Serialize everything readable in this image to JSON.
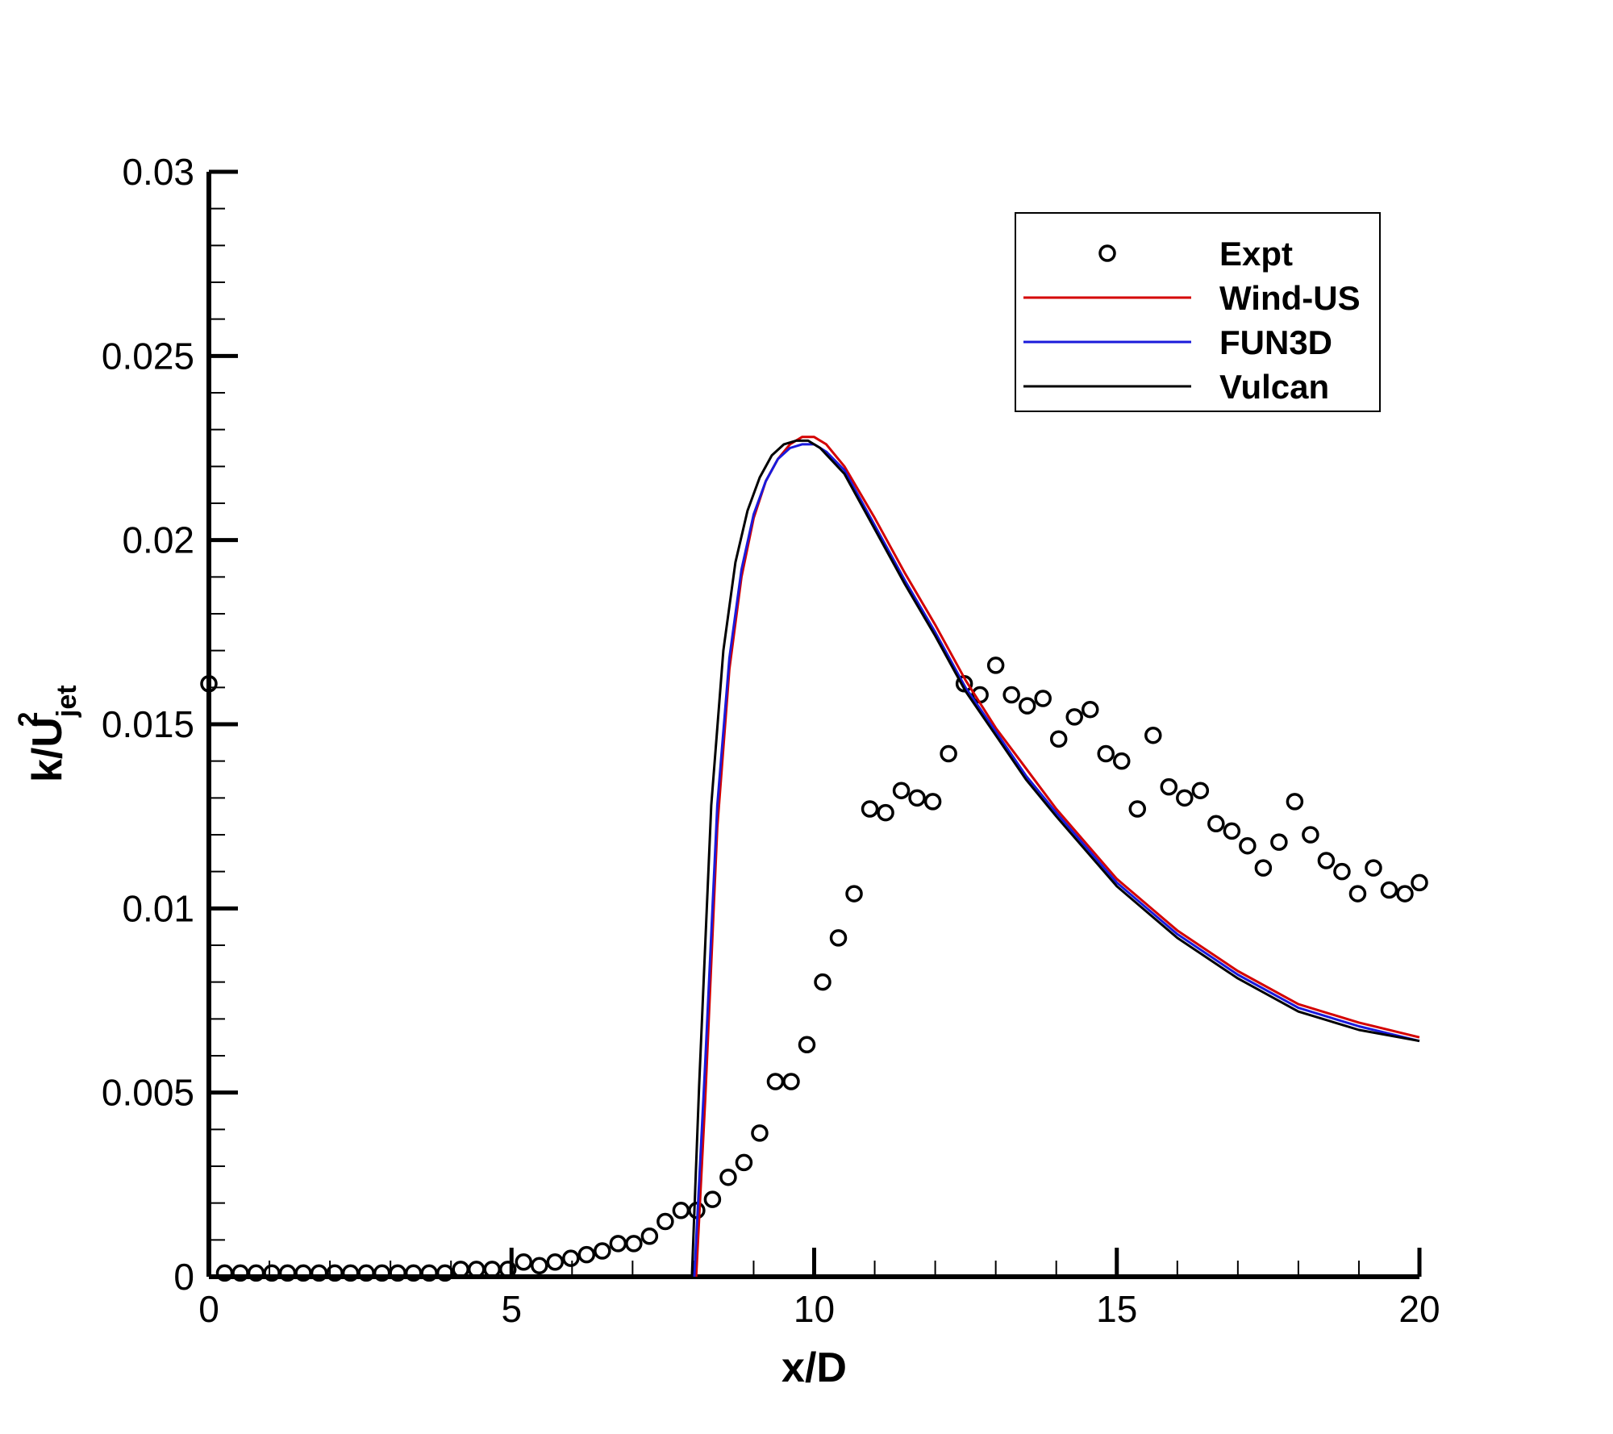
{
  "chart_data": {
    "type": "line",
    "title": "",
    "xlabel": "x/D",
    "ylabel": {
      "base": "k/U",
      "subscript": "jet",
      "superscript": "2"
    },
    "xlim": [
      0,
      20
    ],
    "ylim": [
      0,
      0.03
    ],
    "x_ticks": [
      0,
      5,
      10,
      15,
      20
    ],
    "x_tick_labels": [
      "0",
      "5",
      "10",
      "15",
      "20"
    ],
    "y_ticks": [
      0,
      0.005,
      0.01,
      0.015,
      0.02,
      0.025,
      0.03
    ],
    "y_tick_labels": [
      "0",
      "0.005",
      "0.01",
      "0.015",
      "0.02",
      "0.025",
      "0.03"
    ],
    "grid": false,
    "legend_position": "top-right",
    "legend": [
      "Expt",
      "Wind-US",
      "FUN3D",
      "Vulcan"
    ],
    "series": [
      {
        "name": "Expt",
        "style": "markers",
        "marker": "circle",
        "color": "#000000",
        "x": [
          0.0,
          0.26,
          0.52,
          0.78,
          1.04,
          1.3,
          1.56,
          1.82,
          2.08,
          2.34,
          2.6,
          2.86,
          3.12,
          3.38,
          3.64,
          3.9,
          4.16,
          4.42,
          4.68,
          4.94,
          5.2,
          5.46,
          5.72,
          5.98,
          6.24,
          6.5,
          6.76,
          7.02,
          7.28,
          7.54,
          7.8,
          8.06,
          8.32,
          8.58,
          8.84,
          9.1,
          9.36,
          9.62,
          9.88,
          10.14,
          10.4,
          10.66,
          10.92,
          11.18,
          11.44,
          11.7,
          11.96,
          12.22,
          12.48,
          12.74,
          13.0,
          13.26,
          13.52,
          13.78,
          14.04,
          14.3,
          14.56,
          14.82,
          15.08,
          15.34,
          15.6,
          15.86,
          16.12,
          16.38,
          16.64,
          16.9,
          17.16,
          17.42,
          17.68,
          17.94,
          18.2,
          18.46,
          18.72,
          18.98,
          19.24,
          19.5,
          19.76,
          20.0
        ],
        "y": [
          0.0161,
          0.0001,
          0.0001,
          0.0001,
          0.0001,
          0.0001,
          0.0001,
          0.0001,
          0.0001,
          0.0001,
          0.0001,
          0.0001,
          0.0001,
          0.0001,
          0.0001,
          0.0001,
          0.0002,
          0.0002,
          0.0002,
          0.0002,
          0.0004,
          0.0003,
          0.0004,
          0.0005,
          0.0006,
          0.0007,
          0.0009,
          0.0009,
          0.0011,
          0.0015,
          0.0018,
          0.0018,
          0.0021,
          0.0027,
          0.0031,
          0.0039,
          0.0053,
          0.0053,
          0.0063,
          0.008,
          0.0092,
          0.0104,
          0.0127,
          0.0126,
          0.0132,
          0.013,
          0.0129,
          0.0142,
          0.0161,
          0.0158,
          0.0166,
          0.0158,
          0.0155,
          0.0157,
          0.0146,
          0.0152,
          0.0154,
          0.0142,
          0.014,
          0.0127,
          0.0147,
          0.0133,
          0.013,
          0.0132,
          0.0123,
          0.0121,
          0.0117,
          0.0111,
          0.0118,
          0.0129,
          0.012,
          0.0113,
          0.011,
          0.0104,
          0.0111,
          0.0105,
          0.0104,
          0.0107
        ]
      },
      {
        "name": "Wind-US",
        "style": "line",
        "color": "#d40000",
        "x": [
          8.05,
          8.2,
          8.4,
          8.6,
          8.8,
          9.0,
          9.2,
          9.4,
          9.6,
          9.8,
          10.0,
          10.2,
          10.5,
          11.0,
          11.5,
          12.0,
          12.5,
          13.0,
          13.5,
          14.0,
          15.0,
          16.0,
          17.0,
          18.0,
          19.0,
          20.0
        ],
        "y": [
          0.0,
          0.0048,
          0.0122,
          0.0165,
          0.019,
          0.0206,
          0.0216,
          0.0222,
          0.0226,
          0.0228,
          0.0228,
          0.0226,
          0.022,
          0.0206,
          0.0191,
          0.0177,
          0.0162,
          0.0149,
          0.0138,
          0.0127,
          0.0108,
          0.0094,
          0.0083,
          0.0074,
          0.0069,
          0.0065
        ]
      },
      {
        "name": "FUN3D",
        "style": "line",
        "color": "#1a1adb",
        "x": [
          8.02,
          8.2,
          8.4,
          8.6,
          8.8,
          9.0,
          9.2,
          9.4,
          9.6,
          9.8,
          10.0,
          10.2,
          10.5,
          11.0,
          11.5,
          12.0,
          12.5,
          13.0,
          13.5,
          14.0,
          15.0,
          16.0,
          17.0,
          18.0,
          19.0,
          20.0
        ],
        "y": [
          0.0,
          0.0058,
          0.0128,
          0.0168,
          0.0192,
          0.0207,
          0.0216,
          0.0222,
          0.0225,
          0.0226,
          0.0226,
          0.0224,
          0.0219,
          0.0204,
          0.0189,
          0.0175,
          0.016,
          0.0148,
          0.0136,
          0.0126,
          0.0107,
          0.0093,
          0.0082,
          0.0073,
          0.0068,
          0.0064
        ]
      },
      {
        "name": "Vulcan",
        "style": "line",
        "color": "#000000",
        "x": [
          7.98,
          8.1,
          8.3,
          8.5,
          8.7,
          8.9,
          9.1,
          9.3,
          9.5,
          9.7,
          9.9,
          10.1,
          10.5,
          11.0,
          11.5,
          12.0,
          12.5,
          13.0,
          13.5,
          14.0,
          15.0,
          16.0,
          17.0,
          18.0,
          19.0,
          20.0
        ],
        "y": [
          0.0,
          0.0052,
          0.0128,
          0.017,
          0.0194,
          0.0208,
          0.0217,
          0.0223,
          0.0226,
          0.0227,
          0.0227,
          0.0225,
          0.0218,
          0.0203,
          0.0188,
          0.0174,
          0.0159,
          0.0147,
          0.0135,
          0.0125,
          0.0106,
          0.0092,
          0.0081,
          0.0072,
          0.0067,
          0.0064
        ]
      }
    ]
  }
}
